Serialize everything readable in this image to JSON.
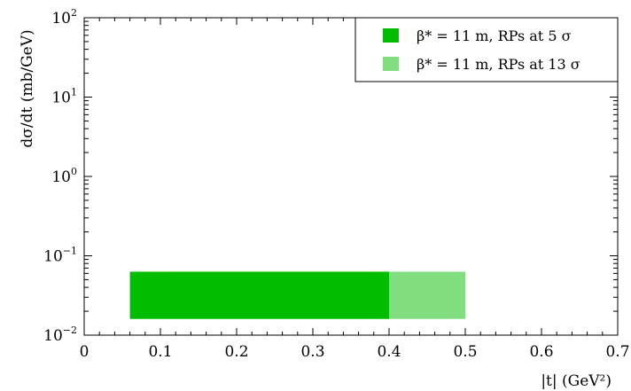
{
  "chart_data": {
    "type": "bar",
    "x_scale": "linear",
    "y_scale": "log",
    "xlim": [
      0,
      0.7
    ],
    "ylim": [
      0.01,
      100
    ],
    "xticks": [
      "0",
      "0.1",
      "0.2",
      "0.3",
      "0.4",
      "0.5",
      "0.6",
      "0.7"
    ],
    "yticks": [
      {
        "base": "10",
        "exp": "−2"
      },
      {
        "base": "10",
        "exp": "−1"
      },
      {
        "base": "10",
        "exp": "0"
      },
      {
        "base": "10",
        "exp": "1"
      },
      {
        "base": "10",
        "exp": "2"
      }
    ],
    "xlabel": "|t|   (GeV²)",
    "ylabel": "dσ/dt   (mb/GeV)",
    "series": [
      {
        "name": "β* = 11 m, RPs at 5 σ",
        "color": "#00bd00",
        "x_range": [
          0.06,
          0.4
        ],
        "y_range": [
          0.016,
          0.063
        ]
      },
      {
        "name": "β* = 11 m, RPs at 13 σ",
        "color": "#80de80",
        "x_range": [
          0.4,
          0.5
        ],
        "y_range": [
          0.016,
          0.063
        ]
      }
    ],
    "legend_position": "top-right",
    "grid": false
  }
}
